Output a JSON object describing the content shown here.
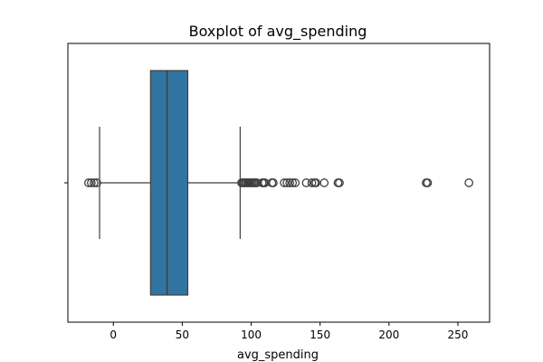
{
  "chart_data": {
    "type": "boxplot",
    "title": "Boxplot of avg_spending",
    "xlabel": "avg_spending",
    "xlim": [
      -33,
      273
    ],
    "xticks": [
      0,
      50,
      100,
      150,
      200,
      250
    ],
    "grid": false,
    "orientation": "horizontal",
    "box": {
      "q1": 27,
      "median": 39,
      "q3": 54,
      "whisker_low": -10,
      "whisker_high": 92
    },
    "outliers": [
      -18,
      -16,
      -14,
      -12,
      93,
      94,
      95,
      96,
      97,
      98,
      99,
      100,
      101,
      102,
      103,
      104,
      108,
      109,
      110,
      115,
      116,
      124,
      126,
      128,
      130,
      132,
      140,
      144,
      146,
      147,
      153,
      163,
      164,
      227,
      228,
      258
    ],
    "colors": {
      "box": "#3274a1",
      "edge": "#3f3f3f"
    }
  }
}
